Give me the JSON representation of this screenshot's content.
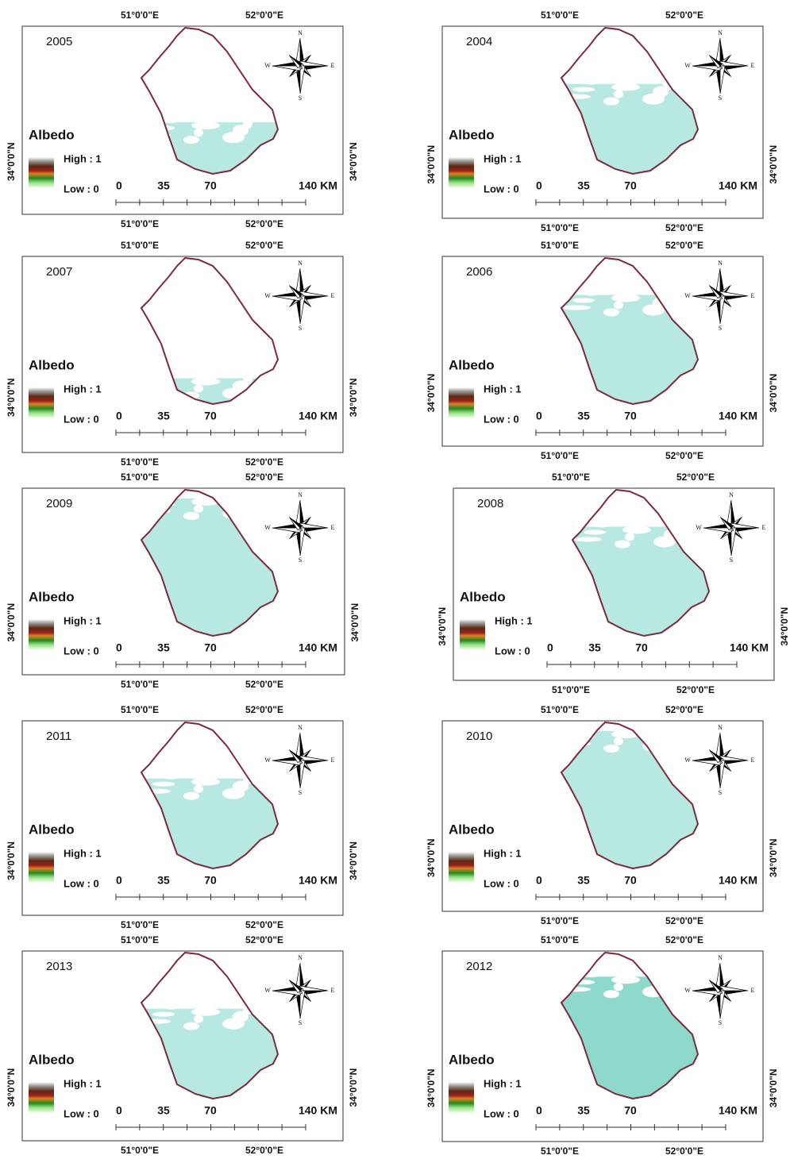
{
  "map_common": {
    "lon_labels": [
      "51°0'0\"E",
      "52°0'0\"E"
    ],
    "lat_label": "34°0'0\"N",
    "legend_title": "Albedo",
    "legend_high": "High : 1",
    "legend_low": "Low : 0",
    "scale_labels": [
      "0",
      "35",
      "70",
      "140 KM"
    ],
    "compass": [
      "N",
      "E",
      "S",
      "W"
    ]
  },
  "panels": [
    {
      "year": "2005"
    },
    {
      "year": "2004"
    },
    {
      "year": "2007"
    },
    {
      "year": "2006"
    },
    {
      "year": "2009"
    },
    {
      "year": "2008"
    },
    {
      "year": "2011"
    },
    {
      "year": "2010"
    },
    {
      "year": "2013"
    },
    {
      "year": "2012"
    }
  ]
}
